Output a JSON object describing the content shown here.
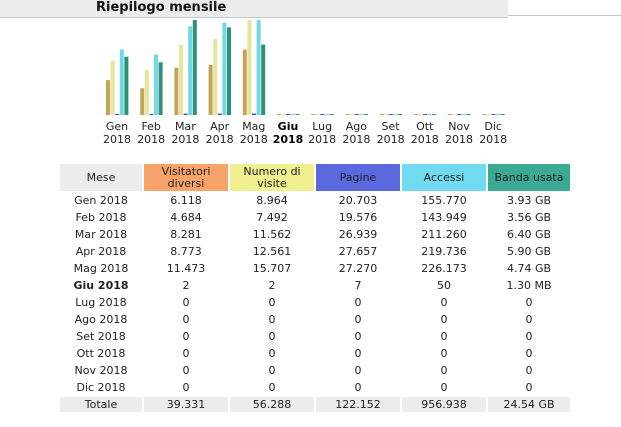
{
  "header": {
    "title": "Riepilogo mensile"
  },
  "colors": {
    "visitatori": "#c7a35a",
    "numero_visite": "#e8e49a",
    "pagine": "#3b4fc8",
    "accessi": "#72d9e4",
    "banda": "#2f8f78"
  },
  "chart_data": {
    "type": "bar",
    "categories": [
      "Gen 2018",
      "Feb 2018",
      "Mar 2018",
      "Apr 2018",
      "Mag 2018",
      "Giu 2018",
      "Lug 2018",
      "Ago 2018",
      "Set 2018",
      "Ott 2018",
      "Nov 2018",
      "Dic 2018"
    ],
    "series": [
      {
        "name": "Visitatori diversi",
        "values": [
          6118,
          4684,
          8281,
          8773,
          11473,
          2,
          0,
          0,
          0,
          0,
          0,
          0
        ]
      },
      {
        "name": "Numero di visite",
        "values": [
          8964,
          7492,
          11562,
          12561,
          15707,
          2,
          0,
          0,
          0,
          0,
          0,
          0
        ]
      },
      {
        "name": "Pagine",
        "values": [
          20703,
          19576,
          26939,
          27657,
          27270,
          7,
          0,
          0,
          0,
          0,
          0,
          0
        ]
      },
      {
        "name": "Accessi",
        "values": [
          155770,
          143949,
          211260,
          219736,
          226173,
          50,
          0,
          0,
          0,
          0,
          0,
          0
        ]
      },
      {
        "name": "Banda usata",
        "values": [
          3.93,
          3.56,
          6.4,
          5.9,
          4.74,
          0.0013,
          0,
          0,
          0,
          0,
          0,
          0
        ]
      }
    ]
  },
  "months": [
    {
      "m": "Gen",
      "y": "2018",
      "current": false
    },
    {
      "m": "Feb",
      "y": "2018",
      "current": false
    },
    {
      "m": "Mar",
      "y": "2018",
      "current": false
    },
    {
      "m": "Apr",
      "y": "2018",
      "current": false
    },
    {
      "m": "Mag",
      "y": "2018",
      "current": false
    },
    {
      "m": "Giu",
      "y": "2018",
      "current": true
    },
    {
      "m": "Lug",
      "y": "2018",
      "current": false
    },
    {
      "m": "Ago",
      "y": "2018",
      "current": false
    },
    {
      "m": "Set",
      "y": "2018",
      "current": false
    },
    {
      "m": "Ott",
      "y": "2018",
      "current": false
    },
    {
      "m": "Nov",
      "y": "2018",
      "current": false
    },
    {
      "m": "Dic",
      "y": "2018",
      "current": false
    }
  ],
  "table": {
    "headers": {
      "mese": "Mese",
      "visitatori": "Visitatori diversi",
      "numero_visite": "Numero di visite",
      "pagine": "Pagine",
      "accessi": "Accessi",
      "banda": "Banda usata"
    },
    "rows": [
      {
        "mese": "Gen 2018",
        "visitatori": "6.118",
        "numero_visite": "8.964",
        "pagine": "20.703",
        "accessi": "155.770",
        "banda": "3.93 GB",
        "current": false
      },
      {
        "mese": "Feb 2018",
        "visitatori": "4.684",
        "numero_visite": "7.492",
        "pagine": "19.576",
        "accessi": "143.949",
        "banda": "3.56 GB",
        "current": false
      },
      {
        "mese": "Mar 2018",
        "visitatori": "8.281",
        "numero_visite": "11.562",
        "pagine": "26.939",
        "accessi": "211.260",
        "banda": "6.40 GB",
        "current": false
      },
      {
        "mese": "Apr 2018",
        "visitatori": "8.773",
        "numero_visite": "12.561",
        "pagine": "27.657",
        "accessi": "219.736",
        "banda": "5.90 GB",
        "current": false
      },
      {
        "mese": "Mag 2018",
        "visitatori": "11.473",
        "numero_visite": "15.707",
        "pagine": "27.270",
        "accessi": "226.173",
        "banda": "4.74 GB",
        "current": false
      },
      {
        "mese": "Giu 2018",
        "visitatori": "2",
        "numero_visite": "2",
        "pagine": "7",
        "accessi": "50",
        "banda": "1.30 MB",
        "current": true
      },
      {
        "mese": "Lug 2018",
        "visitatori": "0",
        "numero_visite": "0",
        "pagine": "0",
        "accessi": "0",
        "banda": "0",
        "current": false
      },
      {
        "mese": "Ago 2018",
        "visitatori": "0",
        "numero_visite": "0",
        "pagine": "0",
        "accessi": "0",
        "banda": "0",
        "current": false
      },
      {
        "mese": "Set 2018",
        "visitatori": "0",
        "numero_visite": "0",
        "pagine": "0",
        "accessi": "0",
        "banda": "0",
        "current": false
      },
      {
        "mese": "Ott 2018",
        "visitatori": "0",
        "numero_visite": "0",
        "pagine": "0",
        "accessi": "0",
        "banda": "0",
        "current": false
      },
      {
        "mese": "Nov 2018",
        "visitatori": "0",
        "numero_visite": "0",
        "pagine": "0",
        "accessi": "0",
        "banda": "0",
        "current": false
      },
      {
        "mese": "Dic 2018",
        "visitatori": "0",
        "numero_visite": "0",
        "pagine": "0",
        "accessi": "0",
        "banda": "0",
        "current": false
      }
    ],
    "total": {
      "mese": "Totale",
      "visitatori": "39.331",
      "numero_visite": "56.288",
      "pagine": "122.152",
      "accessi": "956.938",
      "banda": "24.54 GB"
    }
  }
}
